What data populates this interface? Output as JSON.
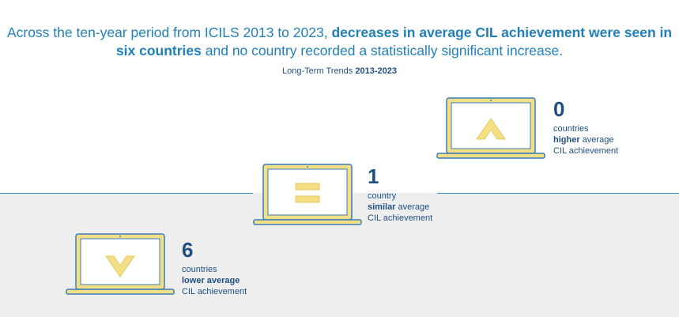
{
  "headline": {
    "part1": "Across the ten-year period from ICILS 2013 to 2023, ",
    "bold": "decreases in average CIL achievement were seen in six countries",
    "part2": " and no country recorded a statistically significant increase."
  },
  "subtitle": {
    "label": "Long-Term Trends ",
    "years": "2013-2023"
  },
  "colors": {
    "heading": "#1f7fba",
    "text": "#1f4f82",
    "laptop_fill": "#f3df86",
    "laptop_stroke": "#3a7dbb",
    "background_lower": "#eeeeef"
  },
  "items": [
    {
      "icon": "arrow-up-icon",
      "count": "0",
      "line1": "countries",
      "bold": "higher",
      "after_bold": " average",
      "line3": "CIL achievement"
    },
    {
      "icon": "equals-icon",
      "count": "1",
      "line1": "country",
      "bold": "similar",
      "after_bold": " average",
      "line3": "CIL achievement"
    },
    {
      "icon": "arrow-down-icon",
      "count": "6",
      "line1": "countries",
      "bold": "lower average",
      "after_bold": "",
      "line3": "CIL achievement"
    }
  ]
}
